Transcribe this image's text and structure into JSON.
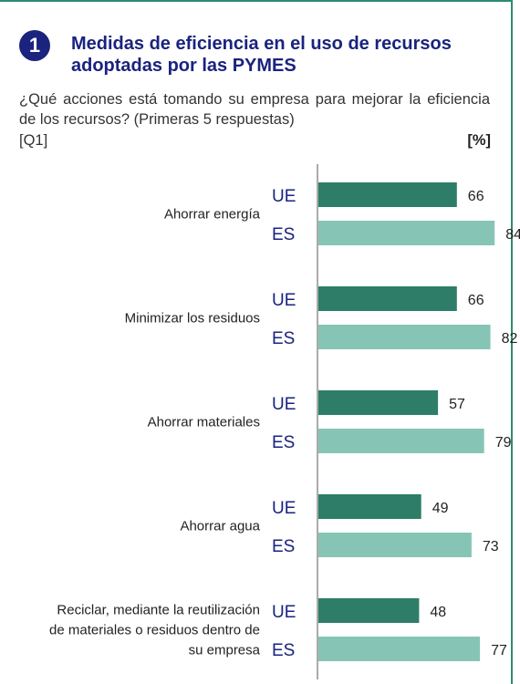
{
  "header": {
    "number": "1",
    "title": "Medidas de eficiencia en el uso de recursos adoptadas por las PYMES",
    "question": "¿Qué acciones está tomando su empresa para mejorar la eficiencia de los recursos? (Primeras 5 respuestas)",
    "question_code": "[Q1]",
    "unit": "[%]"
  },
  "colors": {
    "accent": "#1a237e",
    "series_ue": "#2e7d68",
    "series_es": "#86c5b6",
    "border": "#2e8a74"
  },
  "chart_data": {
    "type": "bar",
    "orientation": "horizontal",
    "categories": [
      "Ahorrar energía",
      "Minimizar los residuos",
      "Ahorrar materiales",
      "Ahorrar agua",
      "Reciclar, mediante la reutilización de materiales o residuos dentro de su empresa"
    ],
    "category_lines": [
      [
        "Ahorrar energía"
      ],
      [
        "Minimizar los residuos"
      ],
      [
        "Ahorrar materiales"
      ],
      [
        "Ahorrar agua"
      ],
      [
        "Reciclar, mediante la reutilización",
        "de materiales o residuos dentro de",
        "su empresa"
      ]
    ],
    "series": [
      {
        "name": "UE",
        "values": [
          66,
          66,
          57,
          49,
          48
        ]
      },
      {
        "name": "ES",
        "values": [
          84,
          82,
          79,
          73,
          77
        ]
      }
    ],
    "xlim": [
      0,
      100
    ],
    "grid": false,
    "legend": "none"
  }
}
